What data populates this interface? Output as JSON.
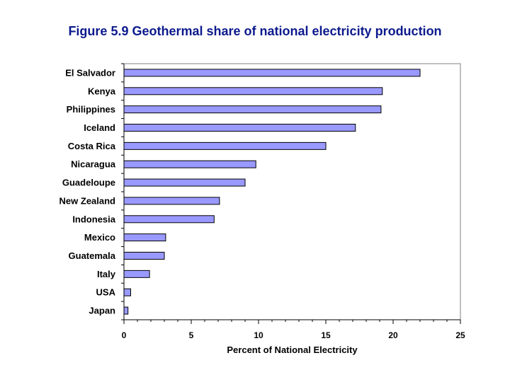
{
  "chart_data": {
    "type": "bar",
    "orientation": "horizontal",
    "title": "Figure 5.9 Geothermal share of national electricity production",
    "xlabel": "Percent of National Electricity",
    "ylabel": "",
    "categories": [
      "El Salvador",
      "Kenya",
      "Philippines",
      "Iceland",
      "Costa Rica",
      "Nicaragua",
      "Guadeloupe",
      "New Zealand",
      "Indonesia",
      "Mexico",
      "Guatemala",
      "Italy",
      "USA",
      "Japan"
    ],
    "values": [
      22.0,
      19.2,
      19.1,
      17.2,
      15.0,
      9.8,
      9.0,
      7.1,
      6.7,
      3.1,
      3.0,
      1.9,
      0.5,
      0.3
    ],
    "xlim": [
      0,
      25
    ],
    "xticks": [
      0,
      5,
      10,
      15,
      20,
      25
    ],
    "grid": false,
    "bar_color": "#9999ff",
    "bar_edge_color": "#000000",
    "title_color": "#0c1a8c"
  }
}
